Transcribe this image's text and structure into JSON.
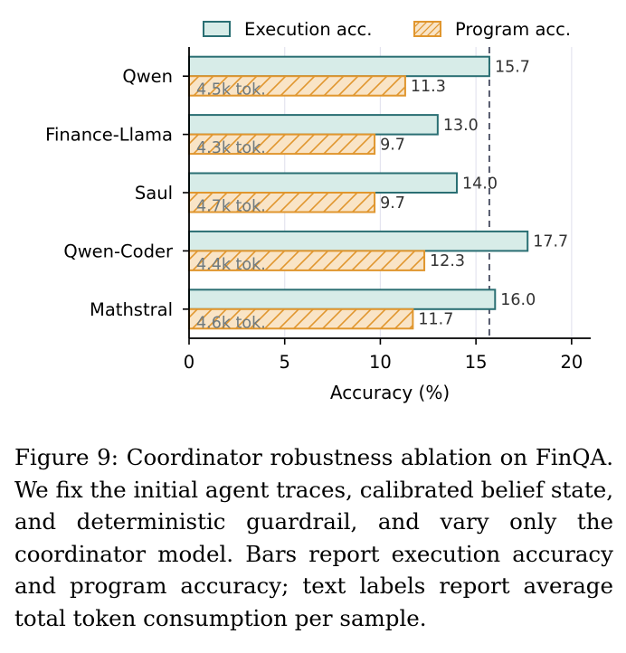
{
  "chart_data": {
    "type": "bar",
    "orientation": "horizontal",
    "categories": [
      "Qwen",
      "Finance-Llama",
      "Saul",
      "Qwen-Coder",
      "Mathstral"
    ],
    "series": [
      {
        "name": "Execution acc.",
        "values": [
          15.7,
          13.0,
          14.0,
          17.7,
          16.0
        ],
        "labels": [
          "15.7",
          "13.0",
          "14.0",
          "17.7",
          "16.0"
        ],
        "color": "#d7ece8",
        "edge": "#2a6f73",
        "hatch": false
      },
      {
        "name": "Program acc.",
        "values": [
          11.3,
          9.7,
          9.7,
          12.3,
          11.7
        ],
        "labels": [
          "11.3",
          "9.7",
          "9.7",
          "12.3",
          "11.7"
        ],
        "color": "#f9e4c6",
        "edge": "#e0962e",
        "hatch": true
      }
    ],
    "token_labels": [
      "4.5k tok.",
      "4.3k tok.",
      "4.7k tok.",
      "4.4k tok.",
      "4.6k tok."
    ],
    "xlabel": "Accuracy (%)",
    "ylabel": "",
    "xlim": [
      0,
      21
    ],
    "xticks": [
      0,
      5,
      10,
      15,
      20
    ],
    "reference_line": {
      "value": 15.7,
      "style": "dashed"
    },
    "grid": "vertical",
    "legend": "top",
    "title": ""
  },
  "caption": "Figure 9: Coordinator robustness ablation on FinQA. We fix the initial agent traces, calibrated belief state, and deterministic guardrail, and vary only the coordinator model. Bars report execution accuracy and program accuracy; text labels report average total token consumption per sample."
}
